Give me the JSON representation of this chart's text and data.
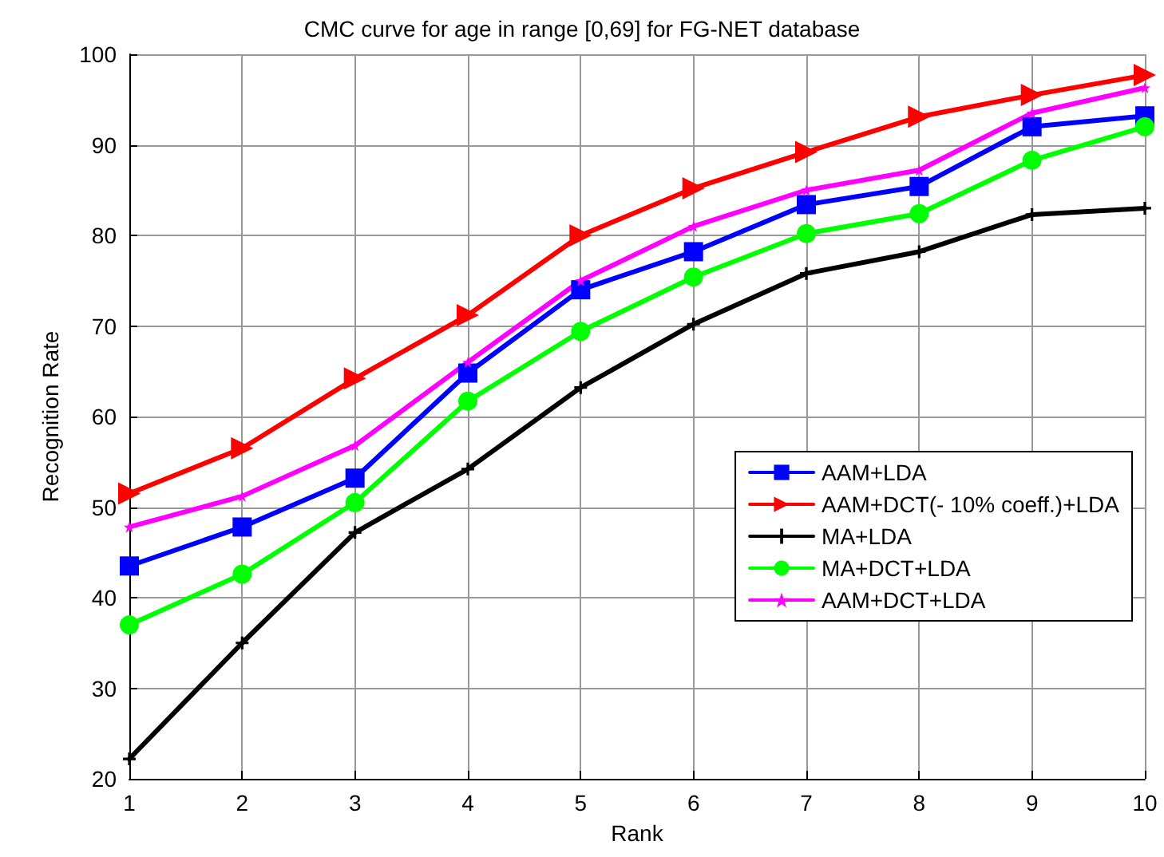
{
  "chart_data": {
    "type": "line",
    "title": "CMC curve for age in range [0,69] for FG-NET database",
    "xlabel": "Rank",
    "ylabel": "Recognition Rate",
    "x": [
      1,
      2,
      3,
      4,
      5,
      6,
      7,
      8,
      9,
      10
    ],
    "xlim": [
      1,
      10
    ],
    "xticks": [
      1,
      2,
      3,
      4,
      5,
      6,
      7,
      8,
      9,
      10
    ],
    "ylim": [
      20,
      100
    ],
    "yticks": [
      20,
      30,
      40,
      50,
      60,
      70,
      80,
      90,
      100
    ],
    "grid": true,
    "legend": "right",
    "line_style": "solid",
    "series": [
      {
        "name": "AAM+LDA",
        "color": "#0000ff",
        "marker": "square",
        "values": [
          43.5,
          47.8,
          53.2,
          64.8,
          74,
          78.2,
          83.4,
          85.4,
          92,
          93.2
        ]
      },
      {
        "name": "AAM+DCT(- 10% coeff.)+LDA",
        "color": "#ff0000",
        "marker": "triangle",
        "values": [
          51.5,
          56.5,
          64.2,
          71.2,
          80,
          85.2,
          89.2,
          93.1,
          95.5,
          97.7
        ]
      },
      {
        "name": "MA+LDA",
        "color": "#000000",
        "marker": "cross",
        "values": [
          22.2,
          35,
          47.2,
          54.2,
          63.2,
          70.2,
          75.8,
          78.2,
          82.3,
          83
        ]
      },
      {
        "name": "MA+DCT+LDA",
        "color": "#00ff00",
        "marker": "circle",
        "values": [
          37,
          42.6,
          50.5,
          61.7,
          69.4,
          75.4,
          80.2,
          82.4,
          88.3,
          92
        ]
      },
      {
        "name": "AAM+DCT+LDA",
        "color": "#ff00ff",
        "marker": "star",
        "values": [
          47.8,
          51.2,
          56.8,
          66,
          75,
          81,
          85,
          87.2,
          93.5,
          96.3
        ]
      }
    ]
  }
}
